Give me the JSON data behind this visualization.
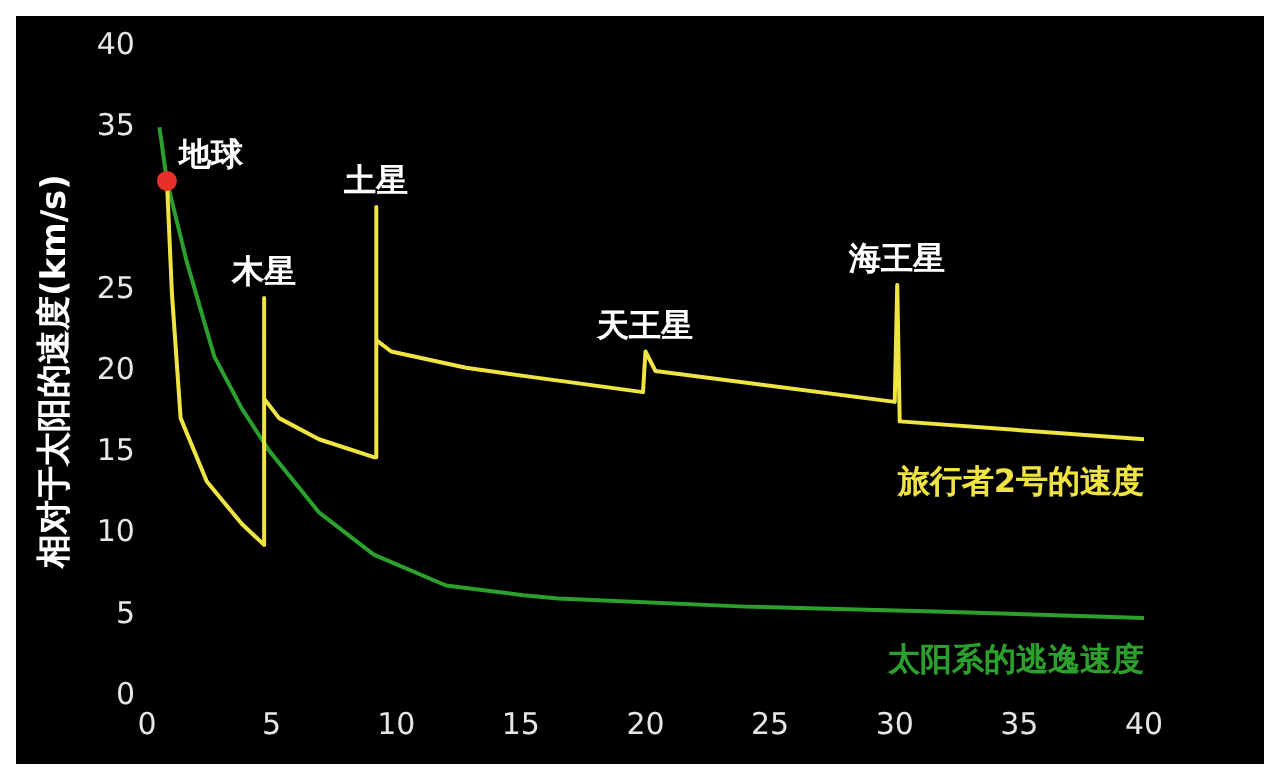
{
  "chart_data": {
    "type": "line",
    "ylabel": "相对于太阳的速度(km/s)",
    "xlim": [
      0,
      40
    ],
    "xticks": [
      0,
      5,
      10,
      15,
      20,
      25,
      30,
      35,
      40
    ],
    "ylim": [
      0,
      40
    ],
    "yticks": [
      0,
      5,
      10,
      15,
      20,
      25,
      35,
      40
    ],
    "grid": false,
    "marker": "none",
    "line_style": "solid",
    "series": [
      {
        "name": "旅行者2号的速度",
        "color": "#f0e442",
        "x": [
          0.8,
          1.0,
          1.35,
          2.4,
          3.8,
          4.7,
          4.7,
          4.7,
          5.3,
          6.9,
          9.1,
          9.2,
          9.2,
          9.2,
          9.8,
          12.8,
          15.1,
          19.9,
          20.0,
          20.4,
          30.0,
          30.1,
          30.2,
          40
        ],
        "values": [
          31.7,
          24.8,
          17.1,
          13.2,
          10.6,
          9.3,
          24.5,
          18.3,
          17.1,
          15.8,
          14.7,
          14.7,
          30.1,
          21.9,
          21.2,
          20.2,
          19.7,
          18.7,
          21.2,
          20.0,
          18.1,
          25.3,
          16.9,
          15.8
        ]
      },
      {
        "name": "太阳系的逃逸速度",
        "color": "#2ca02c",
        "x": [
          0.5,
          0.8,
          1.6,
          2.7,
          3.8,
          4.9,
          6.9,
          9.1,
          12.0,
          15.1,
          16.5,
          24.0,
          31.6,
          40
        ],
        "values": [
          35,
          31.7,
          26.7,
          20.9,
          17.7,
          15.1,
          11.3,
          8.7,
          6.8,
          6.2,
          6.0,
          5.5,
          5.2,
          4.8
        ]
      },
      {
        "type": "scatter",
        "marker": "circle",
        "color": "#e8302a",
        "x": [
          0.8
        ],
        "values": [
          31.7
        ]
      }
    ],
    "annotations": [
      {
        "text": "地球",
        "x": 0.8,
        "y": 31.7
      },
      {
        "text": "木星",
        "x": 4.7,
        "y": 24.5
      },
      {
        "text": "土星",
        "x": 9.2,
        "y": 30.1
      },
      {
        "text": "天王星",
        "x": 20.0,
        "y": 21.2
      },
      {
        "text": "海王星",
        "x": 30.1,
        "y": 25.3
      }
    ]
  }
}
